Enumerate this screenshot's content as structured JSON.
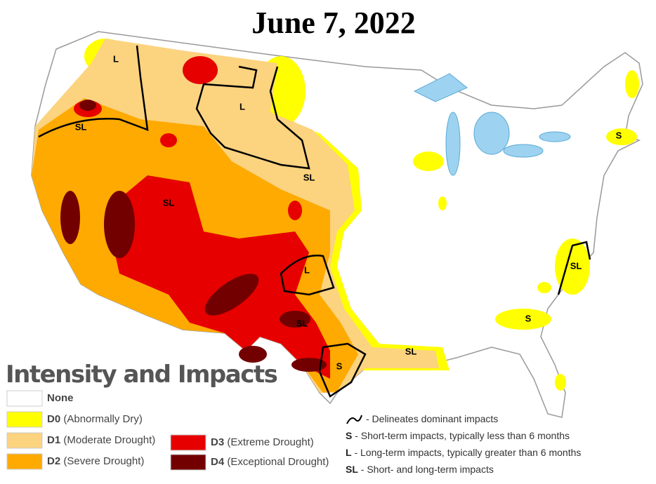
{
  "title": "June 7, 2022",
  "legend": {
    "heading": "Intensity and Impacts",
    "items": [
      {
        "label": "None",
        "color": "#ffffff"
      },
      {
        "code": "D0",
        "desc": "(Abnormally Dry)",
        "color": "#ffff00"
      },
      {
        "code": "D1",
        "desc": "(Moderate Drought)",
        "color": "#fcd37f"
      },
      {
        "code": "D2",
        "desc": "(Severe Drought)",
        "color": "#ffaa00"
      },
      {
        "code": "D3",
        "desc": "(Extreme Drought)",
        "color": "#e60000"
      },
      {
        "code": "D4",
        "desc": "(Exceptional Drought)",
        "color": "#730000"
      }
    ]
  },
  "impacts": [
    {
      "text": "- Delineates dominant impacts"
    },
    {
      "symbol": "S",
      "text": "- Short-term impacts, typically less than 6 months"
    },
    {
      "symbol": "L",
      "text": "- Long-term impacts, typically greater than  6 months"
    },
    {
      "symbol": "SL",
      "text": "- Short- and long-term impacts"
    }
  ],
  "map_labels": [
    "L",
    "L",
    "SL",
    "SL",
    "SL",
    "L",
    "SL",
    "SL",
    "S",
    "SL",
    "S",
    "S"
  ]
}
